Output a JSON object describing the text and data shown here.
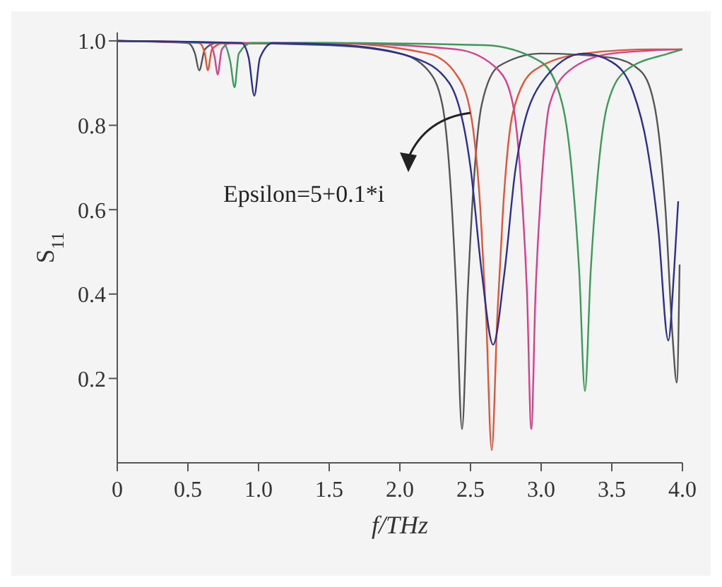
{
  "chart_data": {
    "type": "line",
    "xlabel": "f/THz",
    "ylabel": "S$_{11}$",
    "xlim": [
      0,
      4
    ],
    "ylim": [
      0,
      1.02
    ],
    "xticks": [
      0,
      0.5,
      {
        "value": 1,
        "label": "1.0"
      },
      1.5,
      {
        "value": 2,
        "label": "2.0"
      },
      2.5,
      {
        "value": 3,
        "label": "3.0"
      },
      3.5,
      {
        "value": 4,
        "label": "4.0"
      }
    ],
    "yticks": [
      0.2,
      0.4,
      0.6,
      0.8,
      {
        "value": 1,
        "label": "1.0"
      }
    ],
    "grid": false,
    "marker": "none",
    "line_style": "solid",
    "annotations": [
      "Epsilon=5+0.1*i"
    ],
    "series": [
      {
        "color": "#555555",
        "x": [
          0,
          0.5,
          0.55,
          0.58,
          0.62,
          0.7,
          1.5,
          2.0,
          2.2,
          2.3,
          2.36,
          2.4,
          2.44,
          2.48,
          2.52,
          2.58,
          2.7,
          3.0,
          3.5,
          3.7,
          3.8,
          3.88,
          3.93,
          3.96,
          3.98
        ],
        "values": [
          1,
          0.995,
          0.97,
          0.93,
          0.98,
          0.995,
          0.99,
          0.97,
          0.93,
          0.85,
          0.65,
          0.4,
          0.08,
          0.4,
          0.65,
          0.85,
          0.94,
          0.97,
          0.96,
          0.93,
          0.85,
          0.6,
          0.3,
          0.19,
          0.47
        ]
      },
      {
        "color": "#e0553a",
        "x": [
          0,
          0.58,
          0.62,
          0.64,
          0.67,
          0.75,
          1.5,
          2.2,
          2.4,
          2.5,
          2.57,
          2.61,
          2.65,
          2.69,
          2.73,
          2.8,
          2.95,
          3.3,
          3.8,
          4.0
        ],
        "values": [
          1,
          0.995,
          0.97,
          0.93,
          0.98,
          0.995,
          0.995,
          0.97,
          0.92,
          0.83,
          0.6,
          0.35,
          0.03,
          0.35,
          0.6,
          0.83,
          0.93,
          0.97,
          0.98,
          0.98
        ]
      },
      {
        "color": "#d6408a",
        "x": [
          0,
          0.65,
          0.69,
          0.71,
          0.74,
          0.8,
          1.5,
          2.4,
          2.7,
          2.8,
          2.86,
          2.9,
          2.93,
          2.96,
          3.0,
          3.06,
          3.2,
          3.5,
          4.0
        ],
        "values": [
          1,
          0.995,
          0.96,
          0.92,
          0.98,
          0.995,
          0.995,
          0.98,
          0.93,
          0.85,
          0.65,
          0.4,
          0.08,
          0.4,
          0.65,
          0.85,
          0.93,
          0.97,
          0.98
        ]
      },
      {
        "color": "#3e9a5a",
        "x": [
          0,
          0.75,
          0.8,
          0.83,
          0.86,
          0.95,
          1.5,
          2.6,
          3.0,
          3.15,
          3.22,
          3.27,
          3.31,
          3.35,
          3.4,
          3.47,
          3.6,
          3.9,
          4.0
        ],
        "values": [
          1,
          0.995,
          0.95,
          0.89,
          0.97,
          0.995,
          0.995,
          0.99,
          0.95,
          0.85,
          0.68,
          0.45,
          0.17,
          0.45,
          0.68,
          0.85,
          0.93,
          0.97,
          0.98
        ]
      },
      {
        "color": "#2c2f8c",
        "x": [
          0,
          0.88,
          0.93,
          0.97,
          1.01,
          1.1,
          1.6,
          2.1,
          2.35,
          2.5,
          2.58,
          2.66,
          2.74,
          2.82,
          3.0,
          3.3,
          3.5,
          3.65,
          3.75,
          3.83,
          3.9,
          3.94,
          3.97
        ],
        "values": [
          1,
          0.995,
          0.96,
          0.87,
          0.96,
          0.995,
          0.99,
          0.96,
          0.9,
          0.7,
          0.45,
          0.28,
          0.45,
          0.7,
          0.9,
          0.97,
          0.95,
          0.88,
          0.75,
          0.55,
          0.29,
          0.45,
          0.62
        ]
      }
    ]
  }
}
